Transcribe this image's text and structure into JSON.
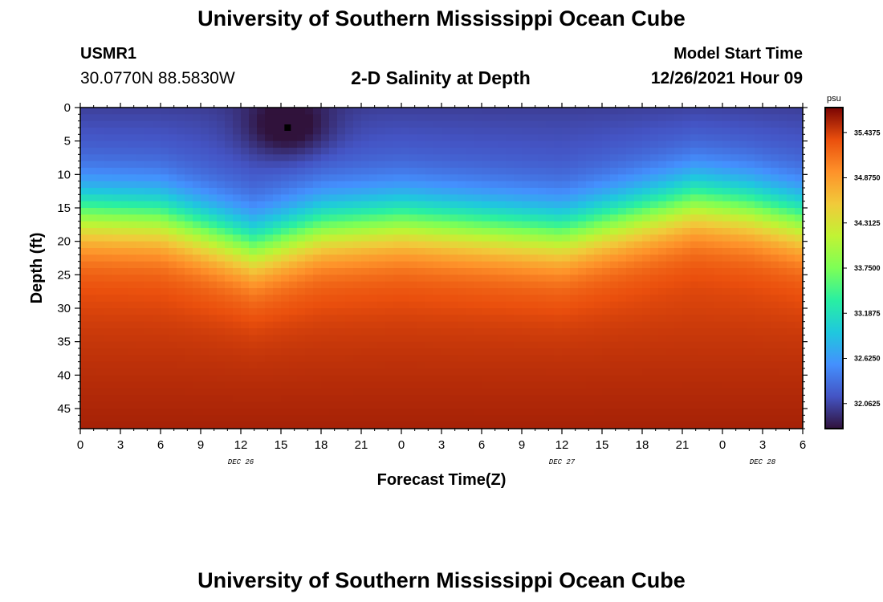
{
  "header": {
    "title": "University of Southern Mississippi Ocean Cube",
    "station_id": "USMR1",
    "coordinates": "30.0770N  88.5830W",
    "subtitle": "2-D Salinity at Depth",
    "model_start_label": "Model Start Time",
    "model_start_value": "12/26/2021 Hour 09"
  },
  "footer": {
    "title": "University of Southern Mississippi Ocean Cube"
  },
  "chart_data": {
    "type": "heatmap",
    "xlabel": "Forecast Time(Z)",
    "ylabel": "Depth (ft)",
    "x_hours_from_dec26_00z": [
      0,
      54
    ],
    "ylim": [
      0,
      48
    ],
    "y_inverted": true,
    "x_tick_labels": [
      "0",
      "3",
      "6",
      "9",
      "12",
      "15",
      "18",
      "21",
      "0",
      "3",
      "6",
      "9",
      "12",
      "15",
      "18",
      "21",
      "0",
      "3",
      "6"
    ],
    "y_ticks": [
      0,
      5,
      10,
      15,
      20,
      25,
      30,
      35,
      40,
      45
    ],
    "date_labels": [
      {
        "label": "DEC 26",
        "hour": 12
      },
      {
        "label": "DEC 27",
        "hour": 36
      },
      {
        "label": "DEC 28",
        "hour": 51
      }
    ],
    "colorbar": {
      "unit": "psu",
      "range": [
        31.75,
        35.75
      ],
      "tick_labels": [
        "35.4375",
        "34.8750",
        "34.3125",
        "33.7500",
        "33.1875",
        "32.6250",
        "32.0625"
      ],
      "tick_values": [
        35.4375,
        34.875,
        34.3125,
        33.75,
        33.1875,
        32.625,
        32.0625
      ]
    },
    "field": {
      "surface_psu": 31.95,
      "bottom_psu": 35.5,
      "halocline_depth_ft_at_hour": [
        {
          "hour": 0,
          "depth": 12
        },
        {
          "hour": 6,
          "depth": 12.5
        },
        {
          "hour": 10,
          "depth": 15
        },
        {
          "hour": 13,
          "depth": 17
        },
        {
          "hour": 18,
          "depth": 14
        },
        {
          "hour": 24,
          "depth": 13
        },
        {
          "hour": 30,
          "depth": 14
        },
        {
          "hour": 36,
          "depth": 15
        },
        {
          "hour": 42,
          "depth": 12
        },
        {
          "hour": 46,
          "depth": 10
        },
        {
          "hour": 50,
          "depth": 11
        },
        {
          "hour": 54,
          "depth": 13
        }
      ],
      "fresh_core": {
        "hour": 15.5,
        "depth_ft": 3,
        "psu": 31.8
      }
    }
  }
}
